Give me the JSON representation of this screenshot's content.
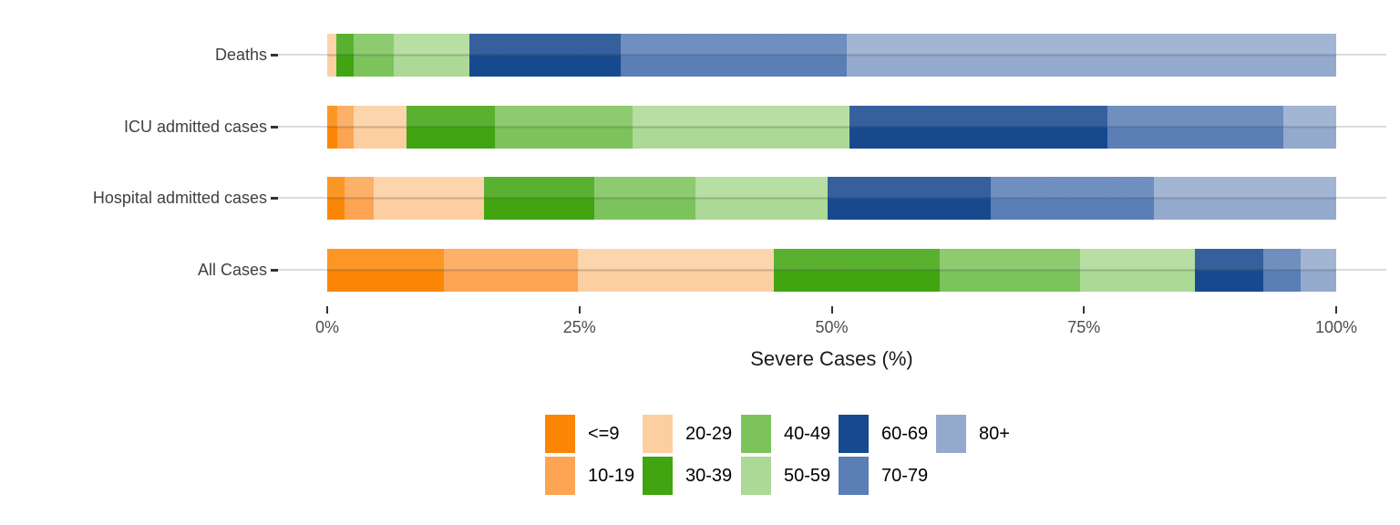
{
  "chart_data": {
    "type": "bar",
    "orientation": "horizontal",
    "stacked": true,
    "unit": "percent",
    "title": "",
    "xlabel": "Severe Cases (%)",
    "ylabel": "",
    "x_range": [
      0,
      100
    ],
    "x_ticks": [
      {
        "label": "0%",
        "value": 0
      },
      {
        "label": "25%",
        "value": 25
      },
      {
        "label": "50%",
        "value": 50
      },
      {
        "label": "75%",
        "value": 75
      },
      {
        "label": "100%",
        "value": 100
      }
    ],
    "grid": "horizontal row lines only",
    "legend_position": "bottom",
    "groups": [
      {
        "label": "<=9",
        "color": "#FB8605"
      },
      {
        "label": "10-19",
        "color": "#FDA452"
      },
      {
        "label": "20-29",
        "color": "#FDCFA0"
      },
      {
        "label": "30-39",
        "color": "#41A511"
      },
      {
        "label": "40-49",
        "color": "#7CC35C"
      },
      {
        "label": "50-59",
        "color": "#ACD995"
      },
      {
        "label": "60-69",
        "color": "#17498F"
      },
      {
        "label": "70-79",
        "color": "#5A7EB5"
      },
      {
        "label": "80+",
        "color": "#94AACD"
      }
    ],
    "rows": [
      {
        "category": "Deaths",
        "values": [
          0.0,
          0.0,
          0.9,
          1.7,
          4.0,
          7.5,
          15.0,
          22.4,
          48.5
        ]
      },
      {
        "category": "ICU admitted cases",
        "values": [
          1.0,
          1.6,
          5.3,
          8.7,
          13.7,
          21.5,
          25.5,
          17.5,
          5.2
        ]
      },
      {
        "category": "Hospital admitted cases",
        "values": [
          1.7,
          2.9,
          10.9,
          11.0,
          10.0,
          13.1,
          16.2,
          16.1,
          18.1
        ]
      },
      {
        "category": "All Cases",
        "values": [
          11.6,
          13.2,
          19.5,
          16.4,
          13.9,
          11.4,
          6.8,
          3.7,
          3.5
        ]
      }
    ]
  },
  "styles": {
    "background": "#FFFFFF",
    "axis_text_color": "#4D4D4D",
    "category_text_color": "#404040",
    "axis_title_color": "#1A1A1A",
    "grid_color": "#DBDBDB",
    "tick_color": "#333333"
  }
}
